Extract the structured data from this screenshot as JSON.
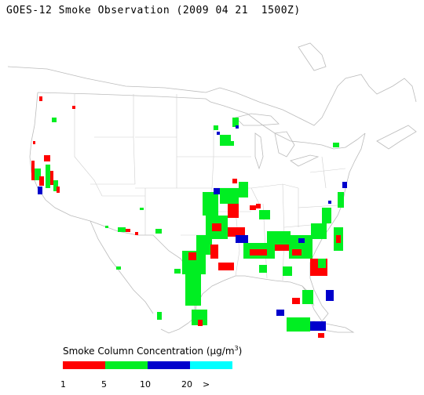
{
  "title": "GOES-12 Smoke Observation (2009 04 21  1500Z)",
  "legend": {
    "title_prefix": "Smoke Column Concentration (",
    "unit": "μg/m",
    "unit_exp": "3",
    "title_suffix": ")",
    "colors": [
      "#ff0000",
      "#00ee22",
      "#0000cc",
      "#00ffff"
    ],
    "ticks": [
      "1",
      "5",
      "10",
      "20",
      ">"
    ]
  },
  "map_style": {
    "border_color": "#bbbbbb",
    "water_color": "#ffffff"
  }
}
